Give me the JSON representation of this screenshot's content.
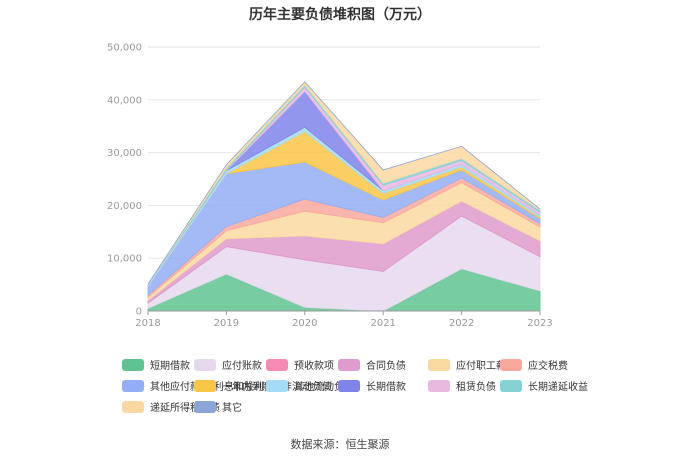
{
  "chart_data": {
    "type": "area",
    "title": "历年主要负债堆积图（万元）",
    "source": "数据来源：恒生聚源",
    "categories": [
      "2018",
      "2019",
      "2020",
      "2021",
      "2022",
      "2023"
    ],
    "ylim": [
      0,
      50000
    ],
    "yticks": [
      "0",
      "10,000",
      "20,000",
      "30,000",
      "40,000",
      "50,000"
    ],
    "grid": true,
    "legend_position": "bottom",
    "series": [
      {
        "name": "短期借款",
        "color": "#5fc391",
        "values": [
          500,
          7000,
          700,
          0,
          8000,
          3800
        ]
      },
      {
        "name": "应付账款",
        "color": "#e6d9ee",
        "values": [
          1000,
          5200,
          9000,
          7500,
          10000,
          6500
        ]
      },
      {
        "name": "预收款项",
        "color": "#f58ab5",
        "values": [
          0,
          0,
          0,
          0,
          0,
          0
        ]
      },
      {
        "name": "合同负债",
        "color": "#df9bcd",
        "values": [
          500,
          1500,
          4500,
          5200,
          2800,
          3000
        ]
      },
      {
        "name": "应付职工薪酬",
        "color": "#fad9a0",
        "values": [
          600,
          1500,
          4700,
          4000,
          3500,
          2600
        ]
      },
      {
        "name": "应交税费",
        "color": "#f9a89e",
        "values": [
          400,
          800,
          2300,
          1000,
          900,
          650
        ]
      },
      {
        "name": "其他应付款(含利息和股利)",
        "color": "#93aef6",
        "values": [
          1700,
          10000,
          7000,
          3300,
          1500,
          950
        ]
      },
      {
        "name": "一年内到期的非流动负债",
        "color": "#f9c647",
        "values": [
          0,
          0,
          5800,
          1300,
          600,
          300
        ]
      },
      {
        "name": "其他流动负债",
        "color": "#a4dbf6",
        "values": [
          400,
          600,
          800,
          500,
          500,
          400
        ]
      },
      {
        "name": "长期借款",
        "color": "#7f84ea",
        "values": [
          0,
          0,
          6800,
          0,
          0,
          0
        ]
      },
      {
        "name": "租赁负债",
        "color": "#e9b9df",
        "values": [
          0,
          100,
          800,
          1000,
          700,
          500
        ]
      },
      {
        "name": "长期递延收益",
        "color": "#86d1d4",
        "values": [
          0,
          400,
          400,
          400,
          400,
          400
        ]
      },
      {
        "name": "递延所得税负债",
        "color": "#fbd8a3",
        "values": [
          0,
          600,
          600,
          2500,
          2300,
          200
        ]
      },
      {
        "name": "其它",
        "color": "#8ba6d6",
        "values": [
          0,
          0,
          0,
          0,
          0,
          0
        ]
      }
    ]
  }
}
